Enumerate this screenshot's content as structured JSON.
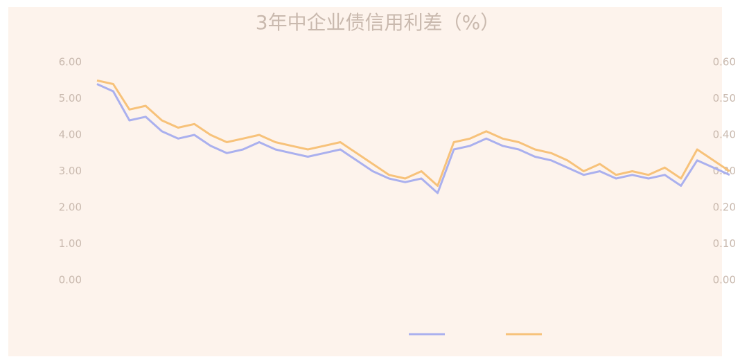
{
  "chart_data": {
    "type": "line",
    "title": "3年中企业债信用利差（%）",
    "categories": [
      null,
      null,
      null,
      null,
      null,
      null,
      null,
      null,
      null,
      null,
      null,
      null,
      null,
      null,
      null,
      null,
      null,
      null,
      null,
      null,
      null,
      null,
      null,
      null,
      null,
      null,
      null,
      null,
      null,
      null,
      null,
      null,
      null,
      null,
      null,
      null,
      null,
      null,
      null,
      null
    ],
    "series": [
      {
        "color": "#aab0ee",
        "values": [
          5.4,
          5.2,
          4.4,
          4.5,
          4.1,
          3.9,
          4.0,
          3.7,
          3.5,
          3.6,
          3.8,
          3.6,
          3.5,
          3.4,
          3.5,
          3.6,
          3.3,
          3.0,
          2.8,
          2.7,
          2.8,
          2.4,
          3.6,
          3.7,
          3.9,
          3.7,
          3.6,
          3.4,
          3.3,
          3.1,
          2.9,
          3.0,
          2.8,
          2.9,
          2.8,
          2.9,
          2.6,
          3.3,
          3.1,
          2.9
        ]
      },
      {
        "color": "#f7c27a",
        "values": [
          5.5,
          5.4,
          4.7,
          4.8,
          4.4,
          4.2,
          4.3,
          4.0,
          3.8,
          3.9,
          4.0,
          3.8,
          3.7,
          3.6,
          3.7,
          3.8,
          3.5,
          3.2,
          2.9,
          2.8,
          3.0,
          2.6,
          3.8,
          3.9,
          4.1,
          3.9,
          3.8,
          3.6,
          3.5,
          3.3,
          3.0,
          3.2,
          2.9,
          3.0,
          2.9,
          3.1,
          2.8,
          3.6,
          3.3,
          3.0
        ]
      }
    ],
    "ylim": [
      0,
      6
    ],
    "yticks": [
      {
        "value": 0,
        "label": "0.00"
      },
      {
        "value": 1,
        "label": "1.00"
      },
      {
        "value": 2,
        "label": "2.00"
      },
      {
        "value": 3,
        "label": "3.00"
      },
      {
        "value": 4,
        "label": "4.00"
      },
      {
        "value": 5,
        "label": "5.00"
      },
      {
        "value": 6,
        "label": "6.00"
      }
    ],
    "y2lim": [
      0,
      0.6
    ],
    "y2ticks": [
      {
        "value": 0,
        "label": "0.00"
      },
      {
        "value": 0.1,
        "label": "0.10"
      },
      {
        "value": 0.2,
        "label": "0.20"
      },
      {
        "value": 0.3,
        "label": "0.30"
      },
      {
        "value": 0.4,
        "label": "0.40"
      },
      {
        "value": 0.5,
        "label": "0.50"
      },
      {
        "value": 0.6,
        "label": "0.60"
      }
    ],
    "grid": false
  }
}
